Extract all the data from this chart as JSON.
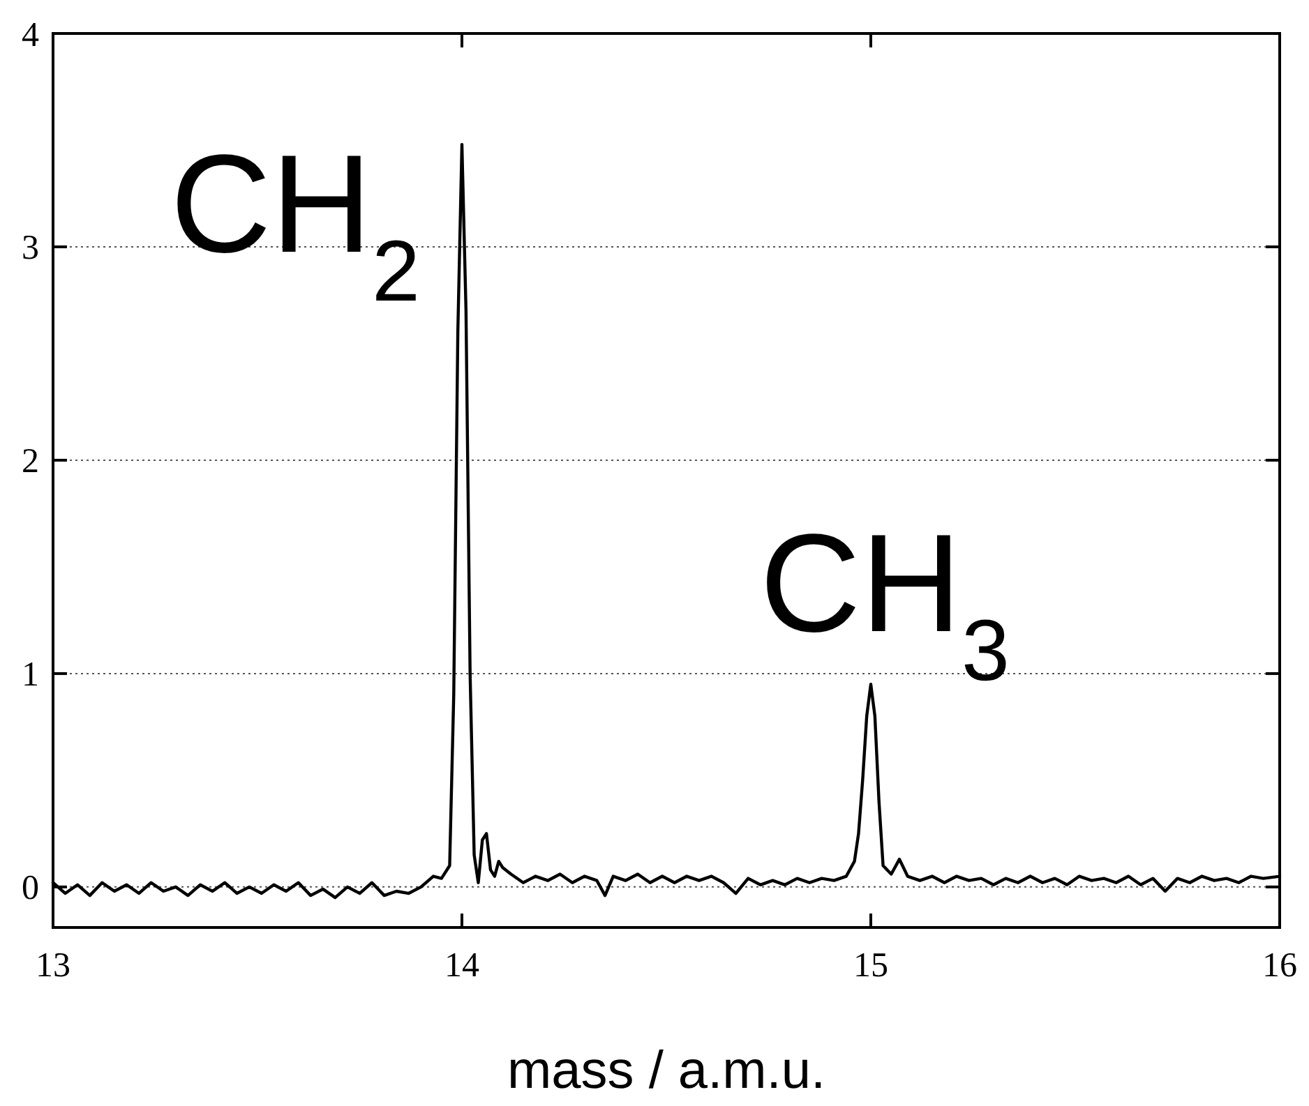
{
  "chart_data": {
    "type": "line",
    "xlabel": "mass / a.m.u.",
    "xlim": [
      13,
      16
    ],
    "xticks": [
      13,
      14,
      15,
      16
    ],
    "ylim": [
      -0.19,
      4
    ],
    "yticks": [
      0,
      1,
      2,
      3,
      4
    ],
    "grid": "y",
    "line_style": "solid",
    "marker": "none",
    "x": [
      13.0,
      13.03,
      13.06,
      13.09,
      13.12,
      13.15,
      13.18,
      13.21,
      13.24,
      13.27,
      13.3,
      13.33,
      13.36,
      13.39,
      13.42,
      13.45,
      13.48,
      13.51,
      13.54,
      13.57,
      13.6,
      13.63,
      13.66,
      13.69,
      13.72,
      13.75,
      13.78,
      13.81,
      13.84,
      13.87,
      13.9,
      13.93,
      13.95,
      13.97,
      13.98,
      13.99,
      14.0,
      14.01,
      14.02,
      14.03,
      14.04,
      14.05,
      14.06,
      14.07,
      14.08,
      14.09,
      14.1,
      14.12,
      14.15,
      14.18,
      14.21,
      14.24,
      14.27,
      14.3,
      14.33,
      14.35,
      14.37,
      14.4,
      14.43,
      14.46,
      14.49,
      14.52,
      14.55,
      14.58,
      14.61,
      14.64,
      14.67,
      14.7,
      14.73,
      14.76,
      14.79,
      14.82,
      14.85,
      14.88,
      14.91,
      14.94,
      14.96,
      14.97,
      14.98,
      14.99,
      15.0,
      15.01,
      15.02,
      15.03,
      15.05,
      15.07,
      15.09,
      15.12,
      15.15,
      15.18,
      15.21,
      15.24,
      15.27,
      15.3,
      15.33,
      15.36,
      15.39,
      15.42,
      15.45,
      15.48,
      15.51,
      15.54,
      15.57,
      15.6,
      15.63,
      15.66,
      15.69,
      15.72,
      15.75,
      15.78,
      15.81,
      15.84,
      15.87,
      15.9,
      15.93,
      15.96,
      16.0
    ],
    "series": [
      {
        "color": "#000000",
        "values": [
          0.02,
          -0.03,
          0.01,
          -0.04,
          0.02,
          -0.02,
          0.01,
          -0.03,
          0.02,
          -0.02,
          0.0,
          -0.04,
          0.01,
          -0.02,
          0.02,
          -0.03,
          0.0,
          -0.03,
          0.01,
          -0.02,
          0.02,
          -0.04,
          -0.01,
          -0.05,
          0.0,
          -0.03,
          0.02,
          -0.04,
          -0.02,
          -0.03,
          0.0,
          0.05,
          0.04,
          0.1,
          0.9,
          2.6,
          3.48,
          2.7,
          1.0,
          0.15,
          0.02,
          0.22,
          0.25,
          0.08,
          0.05,
          0.12,
          0.09,
          0.06,
          0.02,
          0.05,
          0.03,
          0.06,
          0.02,
          0.05,
          0.03,
          -0.04,
          0.05,
          0.03,
          0.06,
          0.02,
          0.05,
          0.02,
          0.05,
          0.03,
          0.05,
          0.02,
          -0.03,
          0.04,
          0.01,
          0.03,
          0.01,
          0.04,
          0.02,
          0.04,
          0.03,
          0.05,
          0.12,
          0.25,
          0.5,
          0.8,
          0.95,
          0.8,
          0.4,
          0.1,
          0.06,
          0.13,
          0.05,
          0.03,
          0.05,
          0.02,
          0.05,
          0.03,
          0.04,
          0.01,
          0.04,
          0.02,
          0.05,
          0.02,
          0.04,
          0.01,
          0.05,
          0.03,
          0.04,
          0.02,
          0.05,
          0.01,
          0.04,
          -0.02,
          0.04,
          0.02,
          0.05,
          0.03,
          0.04,
          0.02,
          0.05,
          0.04,
          0.05
        ]
      }
    ],
    "annotations": [
      {
        "text": "CH$_{2}$",
        "x": 14.0,
        "y": 3.48
      },
      {
        "text": "CH$_{3}$",
        "x": 15.0,
        "y": 0.95
      }
    ]
  }
}
